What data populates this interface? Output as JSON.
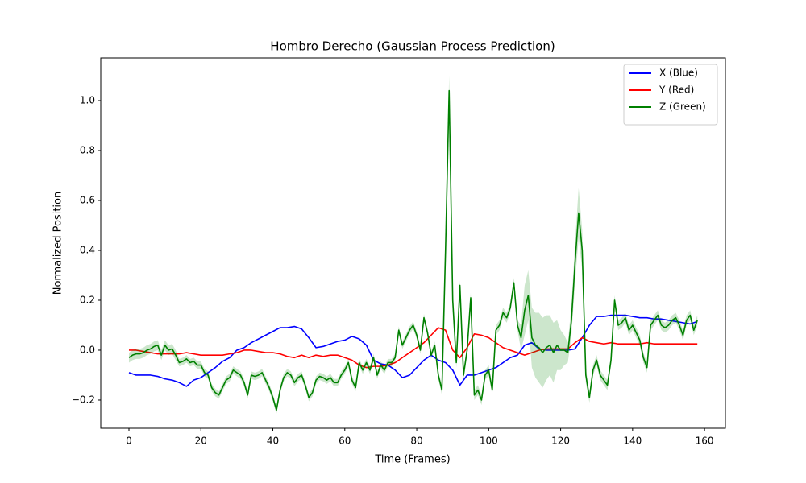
{
  "chart_data": {
    "type": "line",
    "title": "Hombro Derecho (Gaussian Process Prediction)",
    "x_label": "Time (Frames)",
    "y_label": "Normalized Position",
    "xlim": [
      -7.84,
      165.8
    ],
    "ylim": [
      -0.313,
      1.171
    ],
    "xticks": [
      0,
      20,
      40,
      60,
      80,
      100,
      120,
      140,
      160
    ],
    "yticks": [
      {
        "value": -0.2,
        "label": "−0.2"
      },
      {
        "value": 0,
        "label": "0.0"
      },
      {
        "value": 0.2,
        "label": "0.2"
      },
      {
        "value": 0.4,
        "label": "0.4"
      },
      {
        "value": 0.6,
        "label": "0.6"
      },
      {
        "value": 0.8,
        "label": "0.8"
      },
      {
        "value": 1.0,
        "label": "1.0"
      }
    ],
    "legend": "upper right",
    "series": [
      {
        "name": "X (Blue)",
        "color": "#0000ff",
        "x": [
          0,
          2,
          4,
          6,
          8,
          10,
          12,
          14,
          16,
          18,
          20,
          22,
          24,
          26,
          28,
          30,
          32,
          34,
          36,
          38,
          40,
          42,
          44,
          46,
          48,
          50,
          52,
          54,
          56,
          58,
          60,
          62,
          64,
          66,
          68,
          70,
          72,
          74,
          76,
          78,
          80,
          82,
          84,
          86,
          88,
          90,
          92,
          94,
          96,
          98,
          100,
          102,
          104,
          106,
          108,
          110,
          112,
          114,
          116,
          118,
          120,
          122,
          124,
          126,
          128,
          130,
          132,
          134,
          136,
          138,
          140,
          142,
          144,
          146,
          148,
          150,
          152,
          154,
          156,
          158
        ],
        "values": [
          -0.09,
          -0.1,
          -0.1,
          -0.1,
          -0.105,
          -0.115,
          -0.12,
          -0.13,
          -0.145,
          -0.12,
          -0.11,
          -0.09,
          -0.07,
          -0.045,
          -0.03,
          0.0,
          0.01,
          0.03,
          0.045,
          0.06,
          0.075,
          0.09,
          0.09,
          0.095,
          0.085,
          0.05,
          0.01,
          0.015,
          0.025,
          0.035,
          0.04,
          0.055,
          0.045,
          0.02,
          -0.04,
          -0.055,
          -0.06,
          -0.08,
          -0.11,
          -0.1,
          -0.07,
          -0.04,
          -0.02,
          -0.04,
          -0.05,
          -0.08,
          -0.14,
          -0.1,
          -0.1,
          -0.09,
          -0.08,
          -0.07,
          -0.05,
          -0.03,
          -0.02,
          0.02,
          0.03,
          0.005,
          0.0,
          0.0,
          0.0,
          0.0,
          0.005,
          0.05,
          0.1,
          0.135,
          0.135,
          0.14,
          0.14,
          0.14,
          0.135,
          0.13,
          0.13,
          0.125,
          0.125,
          0.12,
          0.115,
          0.11,
          0.105,
          0.115
        ]
      },
      {
        "name": "Y (Red)",
        "color": "#ff0000",
        "x": [
          0,
          2,
          4,
          6,
          8,
          10,
          12,
          14,
          16,
          18,
          20,
          22,
          24,
          26,
          28,
          30,
          32,
          34,
          36,
          38,
          40,
          42,
          44,
          46,
          48,
          50,
          52,
          54,
          56,
          58,
          60,
          62,
          64,
          66,
          68,
          70,
          72,
          74,
          76,
          78,
          80,
          82,
          84,
          86,
          88,
          90,
          92,
          94,
          96,
          98,
          100,
          102,
          104,
          106,
          108,
          110,
          112,
          114,
          116,
          118,
          120,
          122,
          124,
          126,
          128,
          130,
          132,
          134,
          136,
          138,
          140,
          142,
          144,
          146,
          148,
          150,
          152,
          154,
          156,
          158
        ],
        "values": [
          0.0,
          0.0,
          -0.005,
          -0.01,
          -0.015,
          -0.015,
          -0.015,
          -0.015,
          -0.01,
          -0.015,
          -0.02,
          -0.02,
          -0.02,
          -0.02,
          -0.015,
          -0.01,
          0.0,
          0.0,
          -0.005,
          -0.01,
          -0.01,
          -0.015,
          -0.025,
          -0.03,
          -0.02,
          -0.03,
          -0.02,
          -0.025,
          -0.02,
          -0.02,
          -0.03,
          -0.04,
          -0.06,
          -0.07,
          -0.065,
          -0.065,
          -0.06,
          -0.05,
          -0.03,
          -0.01,
          0.01,
          0.03,
          0.06,
          0.09,
          0.08,
          0.0,
          -0.03,
          0.01,
          0.065,
          0.06,
          0.05,
          0.03,
          0.01,
          0.0,
          -0.01,
          -0.02,
          -0.01,
          0.0,
          0.005,
          0.005,
          0.005,
          0.005,
          0.03,
          0.05,
          0.035,
          0.03,
          0.025,
          0.03,
          0.025,
          0.025,
          0.025,
          0.025,
          0.03,
          0.025,
          0.025,
          0.025,
          0.025,
          0.025,
          0.025,
          0.025
        ]
      },
      {
        "name": "Z (Green)",
        "color": "#008000",
        "band_color": "#008000",
        "x": [
          0,
          1,
          2,
          3,
          4,
          5,
          6,
          7,
          8,
          9,
          10,
          11,
          12,
          13,
          14,
          15,
          16,
          17,
          18,
          19,
          20,
          21,
          22,
          23,
          24,
          25,
          26,
          27,
          28,
          29,
          30,
          31,
          32,
          33,
          34,
          35,
          36,
          37,
          38,
          39,
          40,
          41,
          42,
          43,
          44,
          45,
          46,
          47,
          48,
          49,
          50,
          51,
          52,
          53,
          54,
          55,
          56,
          57,
          58,
          59,
          60,
          61,
          62,
          63,
          64,
          65,
          66,
          67,
          68,
          69,
          70,
          71,
          72,
          73,
          74,
          75,
          76,
          77,
          78,
          79,
          80,
          81,
          82,
          83,
          84,
          85,
          86,
          87,
          88,
          89,
          90,
          91,
          92,
          93,
          94,
          95,
          96,
          97,
          98,
          99,
          100,
          101,
          102,
          103,
          104,
          105,
          106,
          107,
          108,
          109,
          110,
          111,
          112,
          113,
          114,
          115,
          116,
          117,
          118,
          119,
          120,
          121,
          122,
          123,
          124,
          125,
          126,
          127,
          128,
          129,
          130,
          131,
          132,
          133,
          134,
          135,
          136,
          137,
          138,
          139,
          140,
          141,
          142,
          143,
          144,
          145,
          146,
          147,
          148,
          149,
          150,
          151,
          152,
          153,
          154,
          155,
          156,
          157,
          158
        ],
        "values": [
          -0.03,
          -0.02,
          -0.015,
          -0.015,
          -0.01,
          0.0,
          0.005,
          0.015,
          0.02,
          -0.02,
          0.02,
          0.0,
          0.005,
          -0.02,
          -0.05,
          -0.045,
          -0.035,
          -0.05,
          -0.045,
          -0.06,
          -0.06,
          -0.09,
          -0.1,
          -0.15,
          -0.17,
          -0.18,
          -0.15,
          -0.12,
          -0.11,
          -0.08,
          -0.09,
          -0.1,
          -0.13,
          -0.18,
          -0.1,
          -0.105,
          -0.1,
          -0.09,
          -0.12,
          -0.15,
          -0.19,
          -0.24,
          -0.16,
          -0.11,
          -0.09,
          -0.1,
          -0.13,
          -0.11,
          -0.1,
          -0.14,
          -0.19,
          -0.17,
          -0.12,
          -0.105,
          -0.11,
          -0.12,
          -0.11,
          -0.13,
          -0.13,
          -0.1,
          -0.08,
          -0.05,
          -0.12,
          -0.15,
          -0.05,
          -0.08,
          -0.05,
          -0.08,
          -0.03,
          -0.1,
          -0.06,
          -0.08,
          -0.05,
          -0.05,
          -0.03,
          0.08,
          0.02,
          0.05,
          0.08,
          0.1,
          0.06,
          0.0,
          0.13,
          0.07,
          -0.02,
          0.02,
          -0.1,
          -0.16,
          0.4,
          1.04,
          0.2,
          -0.05,
          0.26,
          -0.1,
          0.0,
          0.21,
          -0.18,
          -0.16,
          -0.2,
          -0.1,
          -0.08,
          -0.16,
          0.08,
          0.1,
          0.15,
          0.13,
          0.17,
          0.27,
          0.1,
          0.05,
          0.16,
          0.22,
          0.05,
          0.02,
          0.01,
          -0.01,
          0.01,
          0.02,
          -0.01,
          0.02,
          0.0,
          0.0,
          -0.01,
          0.12,
          0.35,
          0.55,
          0.4,
          -0.1,
          -0.19,
          -0.08,
          -0.04,
          -0.1,
          -0.12,
          -0.14,
          -0.04,
          0.2,
          0.1,
          0.11,
          0.13,
          0.08,
          0.1,
          0.07,
          0.04,
          -0.03,
          -0.07,
          0.1,
          0.12,
          0.14,
          0.1,
          0.09,
          0.1,
          0.12,
          0.13,
          0.1,
          0.06,
          0.12,
          0.14,
          0.08,
          0.12
        ],
        "errors": [
          0.02,
          0.02,
          0.02,
          0.02,
          0.02,
          0.02,
          0.02,
          0.02,
          0.02,
          0.02,
          0.02,
          0.02,
          0.02,
          0.02,
          0.015,
          0.015,
          0.015,
          0.015,
          0.015,
          0.015,
          0.015,
          0.015,
          0.015,
          0.015,
          0.015,
          0.015,
          0.015,
          0.015,
          0.015,
          0.015,
          0.015,
          0.015,
          0.015,
          0.015,
          0.015,
          0.015,
          0.015,
          0.015,
          0.015,
          0.015,
          0.015,
          0.015,
          0.015,
          0.015,
          0.015,
          0.015,
          0.015,
          0.015,
          0.015,
          0.015,
          0.015,
          0.015,
          0.015,
          0.015,
          0.015,
          0.015,
          0.015,
          0.015,
          0.015,
          0.015,
          0.015,
          0.015,
          0.015,
          0.015,
          0.015,
          0.015,
          0.015,
          0.015,
          0.015,
          0.015,
          0.015,
          0.015,
          0.015,
          0.015,
          0.015,
          0.015,
          0.015,
          0.015,
          0.015,
          0.015,
          0.015,
          0.015,
          0.015,
          0.015,
          0.015,
          0.015,
          0.015,
          0.02,
          0.05,
          0.06,
          0.04,
          0.02,
          0.02,
          0.02,
          0.02,
          0.02,
          0.02,
          0.02,
          0.02,
          0.02,
          0.02,
          0.02,
          0.02,
          0.02,
          0.02,
          0.02,
          0.02,
          0.02,
          0.02,
          0.05,
          0.1,
          0.1,
          0.12,
          0.13,
          0.14,
          0.14,
          0.13,
          0.12,
          0.12,
          0.1,
          0.08,
          0.06,
          0.04,
          0.06,
          0.08,
          0.1,
          0.08,
          0.03,
          0.02,
          0.02,
          0.02,
          0.02,
          0.02,
          0.02,
          0.02,
          0.02,
          0.02,
          0.02,
          0.02,
          0.02,
          0.02,
          0.02,
          0.02,
          0.02,
          0.02,
          0.02,
          0.02,
          0.02,
          0.02,
          0.02,
          0.02,
          0.02,
          0.02,
          0.02,
          0.02,
          0.02,
          0.02,
          0.02,
          0.02
        ]
      }
    ]
  }
}
